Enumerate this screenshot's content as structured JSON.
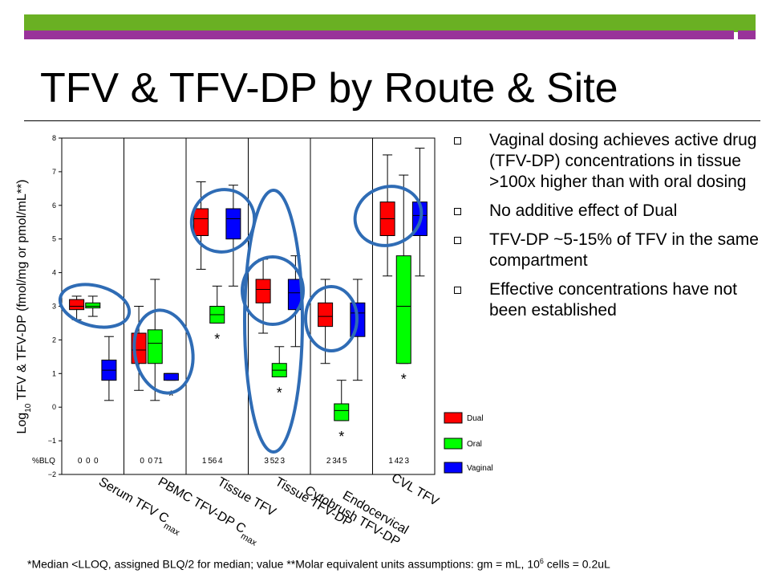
{
  "slide": {
    "title": "TFV & TFV-DP by Route & Site",
    "bullets": [
      "Vaginal dosing achieves active drug (TFV-DP) concentrations in tissue >100x higher than with oral dosing",
      "No additive effect of Dual",
      "TFV-DP ~5-15% of TFV in the same compartment",
      "Effective concentrations have not  been established"
    ],
    "footnote_a": "*Median <LLOQ,  assigned  BLQ/2  for median; value **Molar equivalent units assumptions: gm = mL, 10",
    "footnote_sup": "6",
    "footnote_b": " cells = 0.2uL"
  },
  "colors": {
    "header_green": "#6ab023",
    "header_purple": "#99339a",
    "dual": "#ff0000",
    "oral": "#00ff00",
    "vaginal": "#0000ff",
    "highlight": "#2f6cb5"
  },
  "chart_data": {
    "type": "box",
    "ylabel_pre": "Log",
    "ylabel_sub": "10",
    "ylabel_post": " TFV & TFV-DP (fmol/mg or pmol/mL**)",
    "ylim": [
      -2,
      8
    ],
    "yticks": [
      -2,
      -1,
      0,
      1,
      2,
      3,
      4,
      5,
      6,
      7,
      8
    ],
    "blq_label": "%BLQ",
    "categories": [
      {
        "label": "Serum TFV C",
        "sub": "max",
        "blq": [
          "0",
          "0",
          "0"
        ]
      },
      {
        "label": "PBMC TFV-DP C",
        "sub": "max",
        "blq": [
          "0",
          "0",
          "71"
        ]
      },
      {
        "label": "Tissue TFV",
        "sub": "",
        "blq": [
          "1",
          "56",
          "4"
        ]
      },
      {
        "label": "Tissue TFV-DP",
        "sub": "",
        "blq": [
          "3",
          "52",
          "3"
        ]
      },
      {
        "label": "Endocervical Cytobrush TFV-DP",
        "sub": "",
        "blq": [
          "2",
          "34",
          "5"
        ]
      },
      {
        "label": "CVL TFV",
        "sub": "",
        "blq": [
          "1",
          "42",
          "3"
        ]
      }
    ],
    "series": [
      {
        "name": "Dual",
        "color": "#ff0000",
        "boxes": [
          {
            "min": 2.6,
            "q1": 2.9,
            "med": 3.0,
            "q3": 3.2,
            "max": 3.3,
            "star": false
          },
          {
            "min": 0.5,
            "q1": 1.3,
            "med": 1.7,
            "q3": 2.2,
            "max": 3.0,
            "star": false
          },
          {
            "min": 4.1,
            "q1": 5.1,
            "med": 5.6,
            "q3": 5.9,
            "max": 6.7,
            "star": false
          },
          {
            "min": 2.2,
            "q1": 3.1,
            "med": 3.5,
            "q3": 3.8,
            "max": 4.4,
            "star": false
          },
          {
            "min": 1.3,
            "q1": 2.4,
            "med": 2.7,
            "q3": 3.1,
            "max": 3.8,
            "star": false
          },
          {
            "min": 3.9,
            "q1": 5.1,
            "med": 5.6,
            "q3": 6.1,
            "max": 7.5,
            "star": false
          }
        ]
      },
      {
        "name": "Oral",
        "color": "#00ff00",
        "boxes": [
          {
            "min": 2.7,
            "q1": 2.95,
            "med": 3.0,
            "q3": 3.1,
            "max": 3.3,
            "star": false
          },
          {
            "min": 0.2,
            "q1": 1.3,
            "med": 1.9,
            "q3": 2.3,
            "max": 3.8,
            "star": false
          },
          {
            "min": 2.5,
            "q1": 2.5,
            "med": 2.75,
            "q3": 3.0,
            "max": 3.6,
            "star": true
          },
          {
            "min": 0.9,
            "q1": 0.9,
            "med": 1.1,
            "q3": 1.3,
            "max": 1.8,
            "star": true
          },
          {
            "min": -0.4,
            "q1": -0.4,
            "med": -0.1,
            "q3": 0.1,
            "max": 0.8,
            "star": true
          },
          {
            "min": 1.3,
            "q1": 1.3,
            "med": 3.0,
            "q3": 4.5,
            "max": 6.9,
            "star": true
          }
        ]
      },
      {
        "name": "Vaginal",
        "color": "#0000ff",
        "boxes": [
          {
            "min": 0.2,
            "q1": 0.8,
            "med": 1.1,
            "q3": 1.4,
            "max": 2.1,
            "star": false
          },
          {
            "min": 0.8,
            "q1": 0.8,
            "med": 1.0,
            "q3": 1.0,
            "max": 1.0,
            "star": true
          },
          {
            "min": 3.6,
            "q1": 5.0,
            "med": 5.6,
            "q3": 5.9,
            "max": 6.6,
            "star": false
          },
          {
            "min": 1.8,
            "q1": 2.9,
            "med": 3.4,
            "q3": 3.8,
            "max": 4.5,
            "star": false
          },
          {
            "min": 0.8,
            "q1": 2.1,
            "med": 2.8,
            "q3": 3.1,
            "max": 3.8,
            "star": false
          },
          {
            "min": 3.9,
            "q1": 5.1,
            "med": 5.7,
            "q3": 6.1,
            "max": 7.7,
            "star": false
          }
        ]
      }
    ],
    "legend": [
      "Dual",
      "Oral",
      "Vaginal"
    ],
    "legend_position": "bottom-right",
    "grid": false
  }
}
